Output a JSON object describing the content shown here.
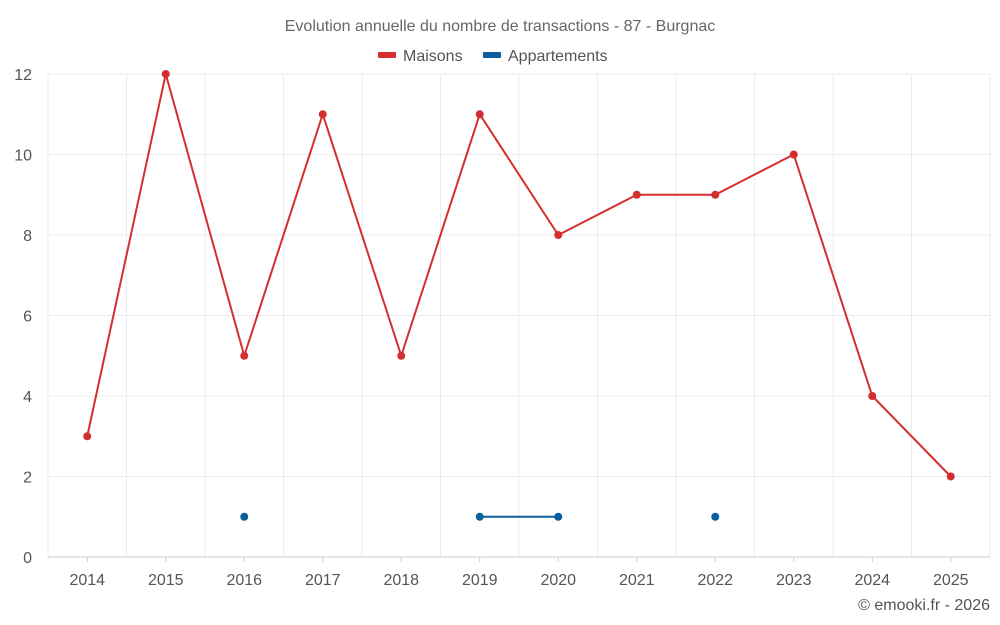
{
  "chart_data": {
    "type": "line",
    "title": "Evolution annuelle du nombre de transactions - 87 - Burgnac",
    "categories": [
      "2014",
      "2015",
      "2016",
      "2017",
      "2018",
      "2019",
      "2020",
      "2021",
      "2022",
      "2023",
      "2024",
      "2025"
    ],
    "ylim": [
      0,
      12
    ],
    "yticks": [
      0,
      2,
      4,
      6,
      8,
      10,
      12
    ],
    "grid": true,
    "legend_position": "top-center",
    "series": [
      {
        "name": "Maisons",
        "color": "#d32f2f",
        "values": [
          3,
          12,
          5,
          11,
          5,
          11,
          8,
          9,
          9,
          10,
          4,
          2
        ]
      },
      {
        "name": "Appartements",
        "color": "#0a5f9e",
        "values": [
          null,
          null,
          1,
          null,
          null,
          1,
          1,
          null,
          1,
          null,
          null,
          null
        ]
      }
    ]
  },
  "footer": "© emooki.fr - 2026"
}
